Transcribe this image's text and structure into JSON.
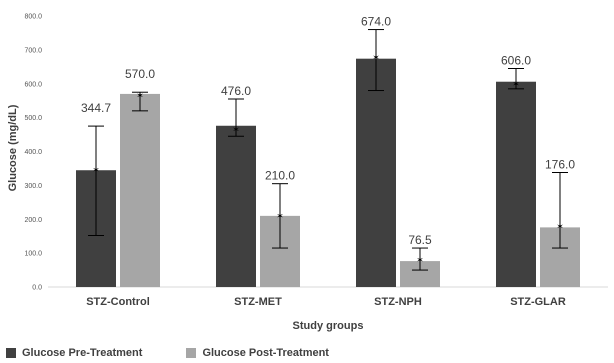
{
  "chart_data": {
    "type": "bar",
    "categories": [
      "STZ-Control",
      "STZ-MET",
      "STZ-NPH",
      "STZ-GLAR"
    ],
    "series": [
      {
        "name": "Glucose Pre-Treatment",
        "color": "#404040",
        "values": [
          344.7,
          476.0,
          674.0,
          606.0
        ],
        "labels": [
          "344.7",
          "476.0",
          "674.0",
          "606.0"
        ],
        "error_low": [
          152,
          445,
          580,
          585
        ],
        "error_high": [
          475,
          555,
          760,
          645
        ],
        "marker_y": [
          344.7,
          465,
          678,
          600
        ]
      },
      {
        "name": "Glucose Post-Treatment",
        "color": "#a6a6a6",
        "values": [
          570.0,
          210.0,
          76.5,
          176.0
        ],
        "labels": [
          "570.0",
          "210.0",
          "76.5",
          "176.0"
        ],
        "error_low": [
          520,
          115,
          50,
          115
        ],
        "error_high": [
          575,
          305,
          115,
          338
        ],
        "marker_y": [
          565,
          210,
          80,
          178
        ]
      }
    ],
    "xlabel": "Study groups",
    "ylabel": "Glucose (mg/dL)",
    "ylim": [
      0,
      800
    ],
    "yticks": [
      0,
      100,
      200,
      300,
      400,
      500,
      600,
      700,
      800
    ],
    "ytick_labels": [
      "0.0",
      "100.0",
      "200.0",
      "300.0",
      "400.0",
      "500.0",
      "600.0",
      "700.0",
      "800.0"
    ],
    "legend_position": "bottom-left",
    "grid": false
  }
}
